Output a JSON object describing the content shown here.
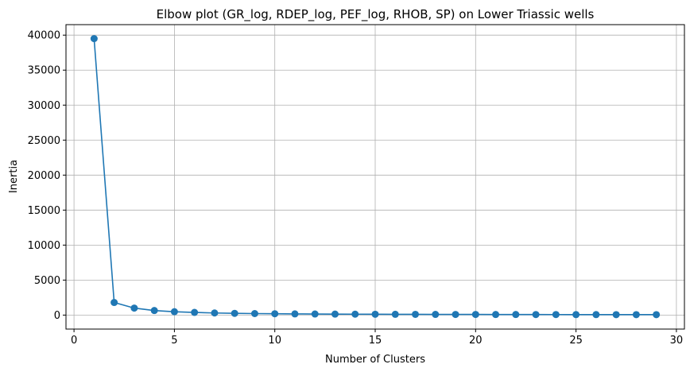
{
  "chart_data": {
    "type": "line",
    "title": "Elbow plot (GR_log, RDEP_log, PEF_log, RHOB, SP) on Lower Triassic wells",
    "xlabel": "Number of Clusters",
    "ylabel": "Inertia",
    "xlim": [
      -0.4,
      30.4
    ],
    "ylim": [
      -2000,
      41500
    ],
    "xticks": [
      0,
      5,
      10,
      15,
      20,
      25,
      30
    ],
    "yticks": [
      0,
      5000,
      10000,
      15000,
      20000,
      25000,
      30000,
      35000,
      40000
    ],
    "grid": true,
    "series": [
      {
        "color": "#1f77b4",
        "marker": "circle",
        "x": [
          1,
          2,
          3,
          4,
          5,
          6,
          7,
          8,
          9,
          10,
          11,
          12,
          13,
          14,
          15,
          16,
          17,
          18,
          19,
          20,
          21,
          22,
          23,
          24,
          25,
          26,
          27,
          28,
          29
        ],
        "y": [
          39500,
          1800,
          1000,
          650,
          480,
          380,
          300,
          250,
          215,
          190,
          170,
          155,
          140,
          130,
          120,
          112,
          105,
          99,
          94,
          89,
          85,
          81,
          77,
          74,
          71,
          68,
          65,
          63,
          60
        ]
      }
    ]
  }
}
